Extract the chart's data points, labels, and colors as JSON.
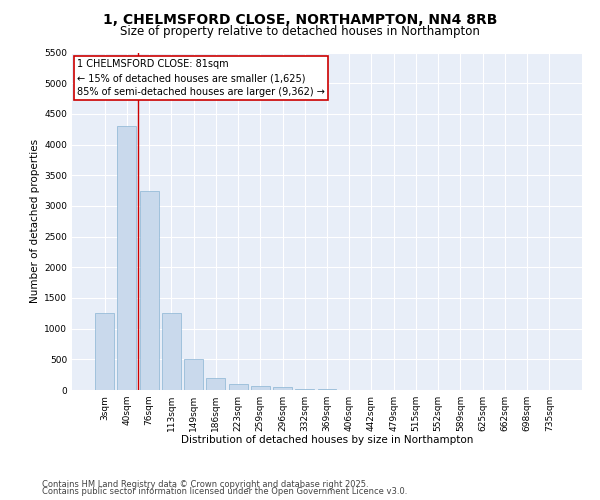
{
  "title_line1": "1, CHELMSFORD CLOSE, NORTHAMPTON, NN4 8RB",
  "title_line2": "Size of property relative to detached houses in Northampton",
  "xlabel": "Distribution of detached houses by size in Northampton",
  "ylabel": "Number of detached properties",
  "categories": [
    "3sqm",
    "40sqm",
    "76sqm",
    "113sqm",
    "149sqm",
    "186sqm",
    "223sqm",
    "259sqm",
    "296sqm",
    "332sqm",
    "369sqm",
    "406sqm",
    "442sqm",
    "479sqm",
    "515sqm",
    "552sqm",
    "589sqm",
    "625sqm",
    "662sqm",
    "698sqm",
    "735sqm"
  ],
  "values": [
    1250,
    4300,
    3250,
    1250,
    500,
    200,
    100,
    60,
    50,
    20,
    10,
    5,
    3,
    2,
    1,
    1,
    0,
    0,
    0,
    0,
    0
  ],
  "bar_color": "#c9d9ec",
  "bar_edge_color": "#8ab4d4",
  "vline_color": "#cc0000",
  "vline_x_index": 1.5,
  "annotation_text": "1 CHELMSFORD CLOSE: 81sqm\n← 15% of detached houses are smaller (1,625)\n85% of semi-detached houses are larger (9,362) →",
  "annotation_box_color": "#ffffff",
  "annotation_box_edge_color": "#cc0000",
  "ylim": [
    0,
    5500
  ],
  "yticks": [
    0,
    500,
    1000,
    1500,
    2000,
    2500,
    3000,
    3500,
    4000,
    4500,
    5000,
    5500
  ],
  "plot_bg_color": "#e8eef8",
  "footer_line1": "Contains HM Land Registry data © Crown copyright and database right 2025.",
  "footer_line2": "Contains public sector information licensed under the Open Government Licence v3.0.",
  "title_fontsize": 10,
  "subtitle_fontsize": 8.5,
  "axis_label_fontsize": 7.5,
  "tick_fontsize": 6.5,
  "annotation_fontsize": 7,
  "footer_fontsize": 6
}
